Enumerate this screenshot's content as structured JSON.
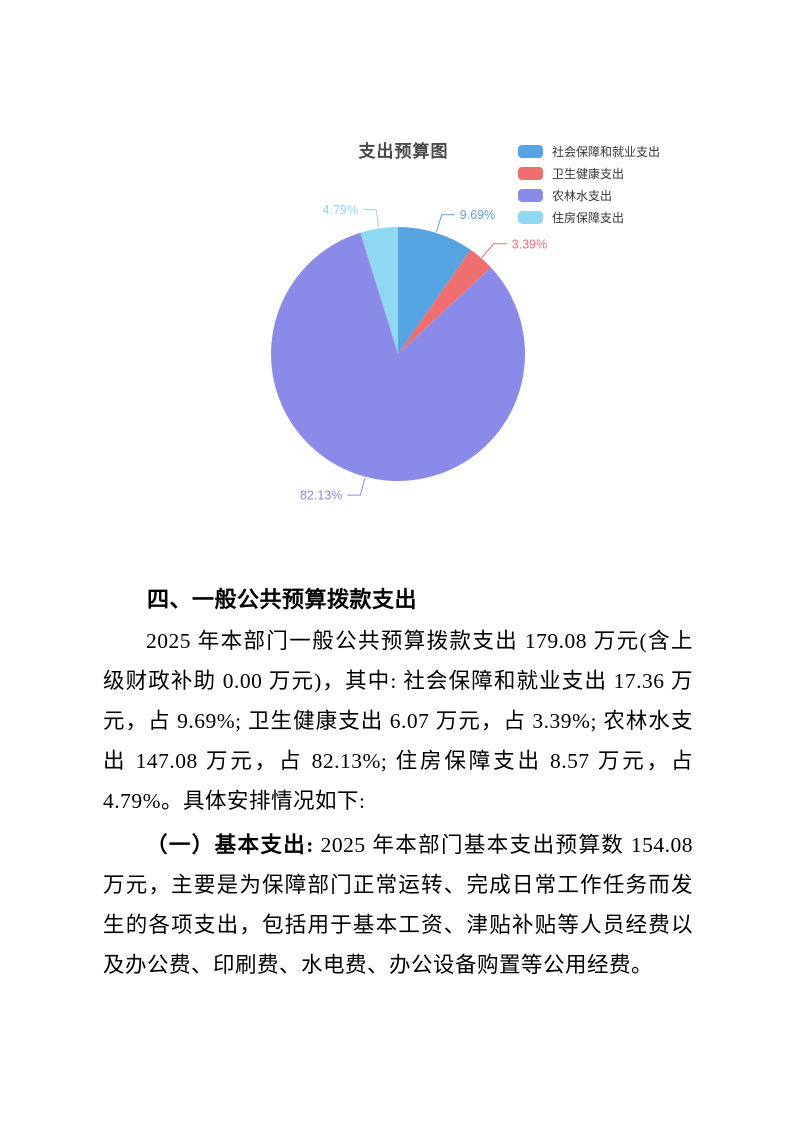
{
  "chart_data": {
    "type": "pie",
    "title": "支出预算图",
    "labels": [
      "社会保障和就业支出",
      "卫生健康支出",
      "农林水支出",
      "住房保障支出"
    ],
    "values": [
      17.36,
      6.07,
      147.08,
      8.57
    ],
    "unit": "万元",
    "percentages": [
      9.69,
      3.39,
      82.13,
      4.79
    ],
    "percent_labels": [
      "9.69%",
      "3.39%",
      "82.13%",
      "4.79%"
    ],
    "colors": [
      "#57a4e2",
      "#ee6f6d",
      "#8a8ae9",
      "#8fd8f2"
    ],
    "legend_position": "top-right",
    "start_angle": "12-oclock-clockwise",
    "label_style": "outside-leader-lines-colored-as-slice",
    "title_color": "#4a4a4e",
    "legend_text_color": "#333639"
  },
  "document": {
    "heading": "四、一般公共预算拨款支出",
    "paragraphs": [
      {
        "bold_prefix": "",
        "text": "2025 年本部门一般公共预算拨款支出 179.08 万元(含上级财政补助 0.00 万元)，其中: 社会保障和就业支出 17.36 万元，占 9.69%; 卫生健康支出 6.07 万元，占 3.39%; 农林水支出 147.08 万元，占 82.13%; 住房保障支出 8.57 万元，占 4.79%。具体安排情况如下:"
      },
      {
        "bold_prefix": "（一）基本支出:",
        "text": " 2025 年本部门基本支出预算数 154.08 万元，主要是为保障部门正常运转、完成日常工作任务而发生的各项支出，包括用于基本工资、津贴补贴等人员经费以及办公费、印刷费、水电费、办公设备购置等公用经费。"
      }
    ]
  }
}
